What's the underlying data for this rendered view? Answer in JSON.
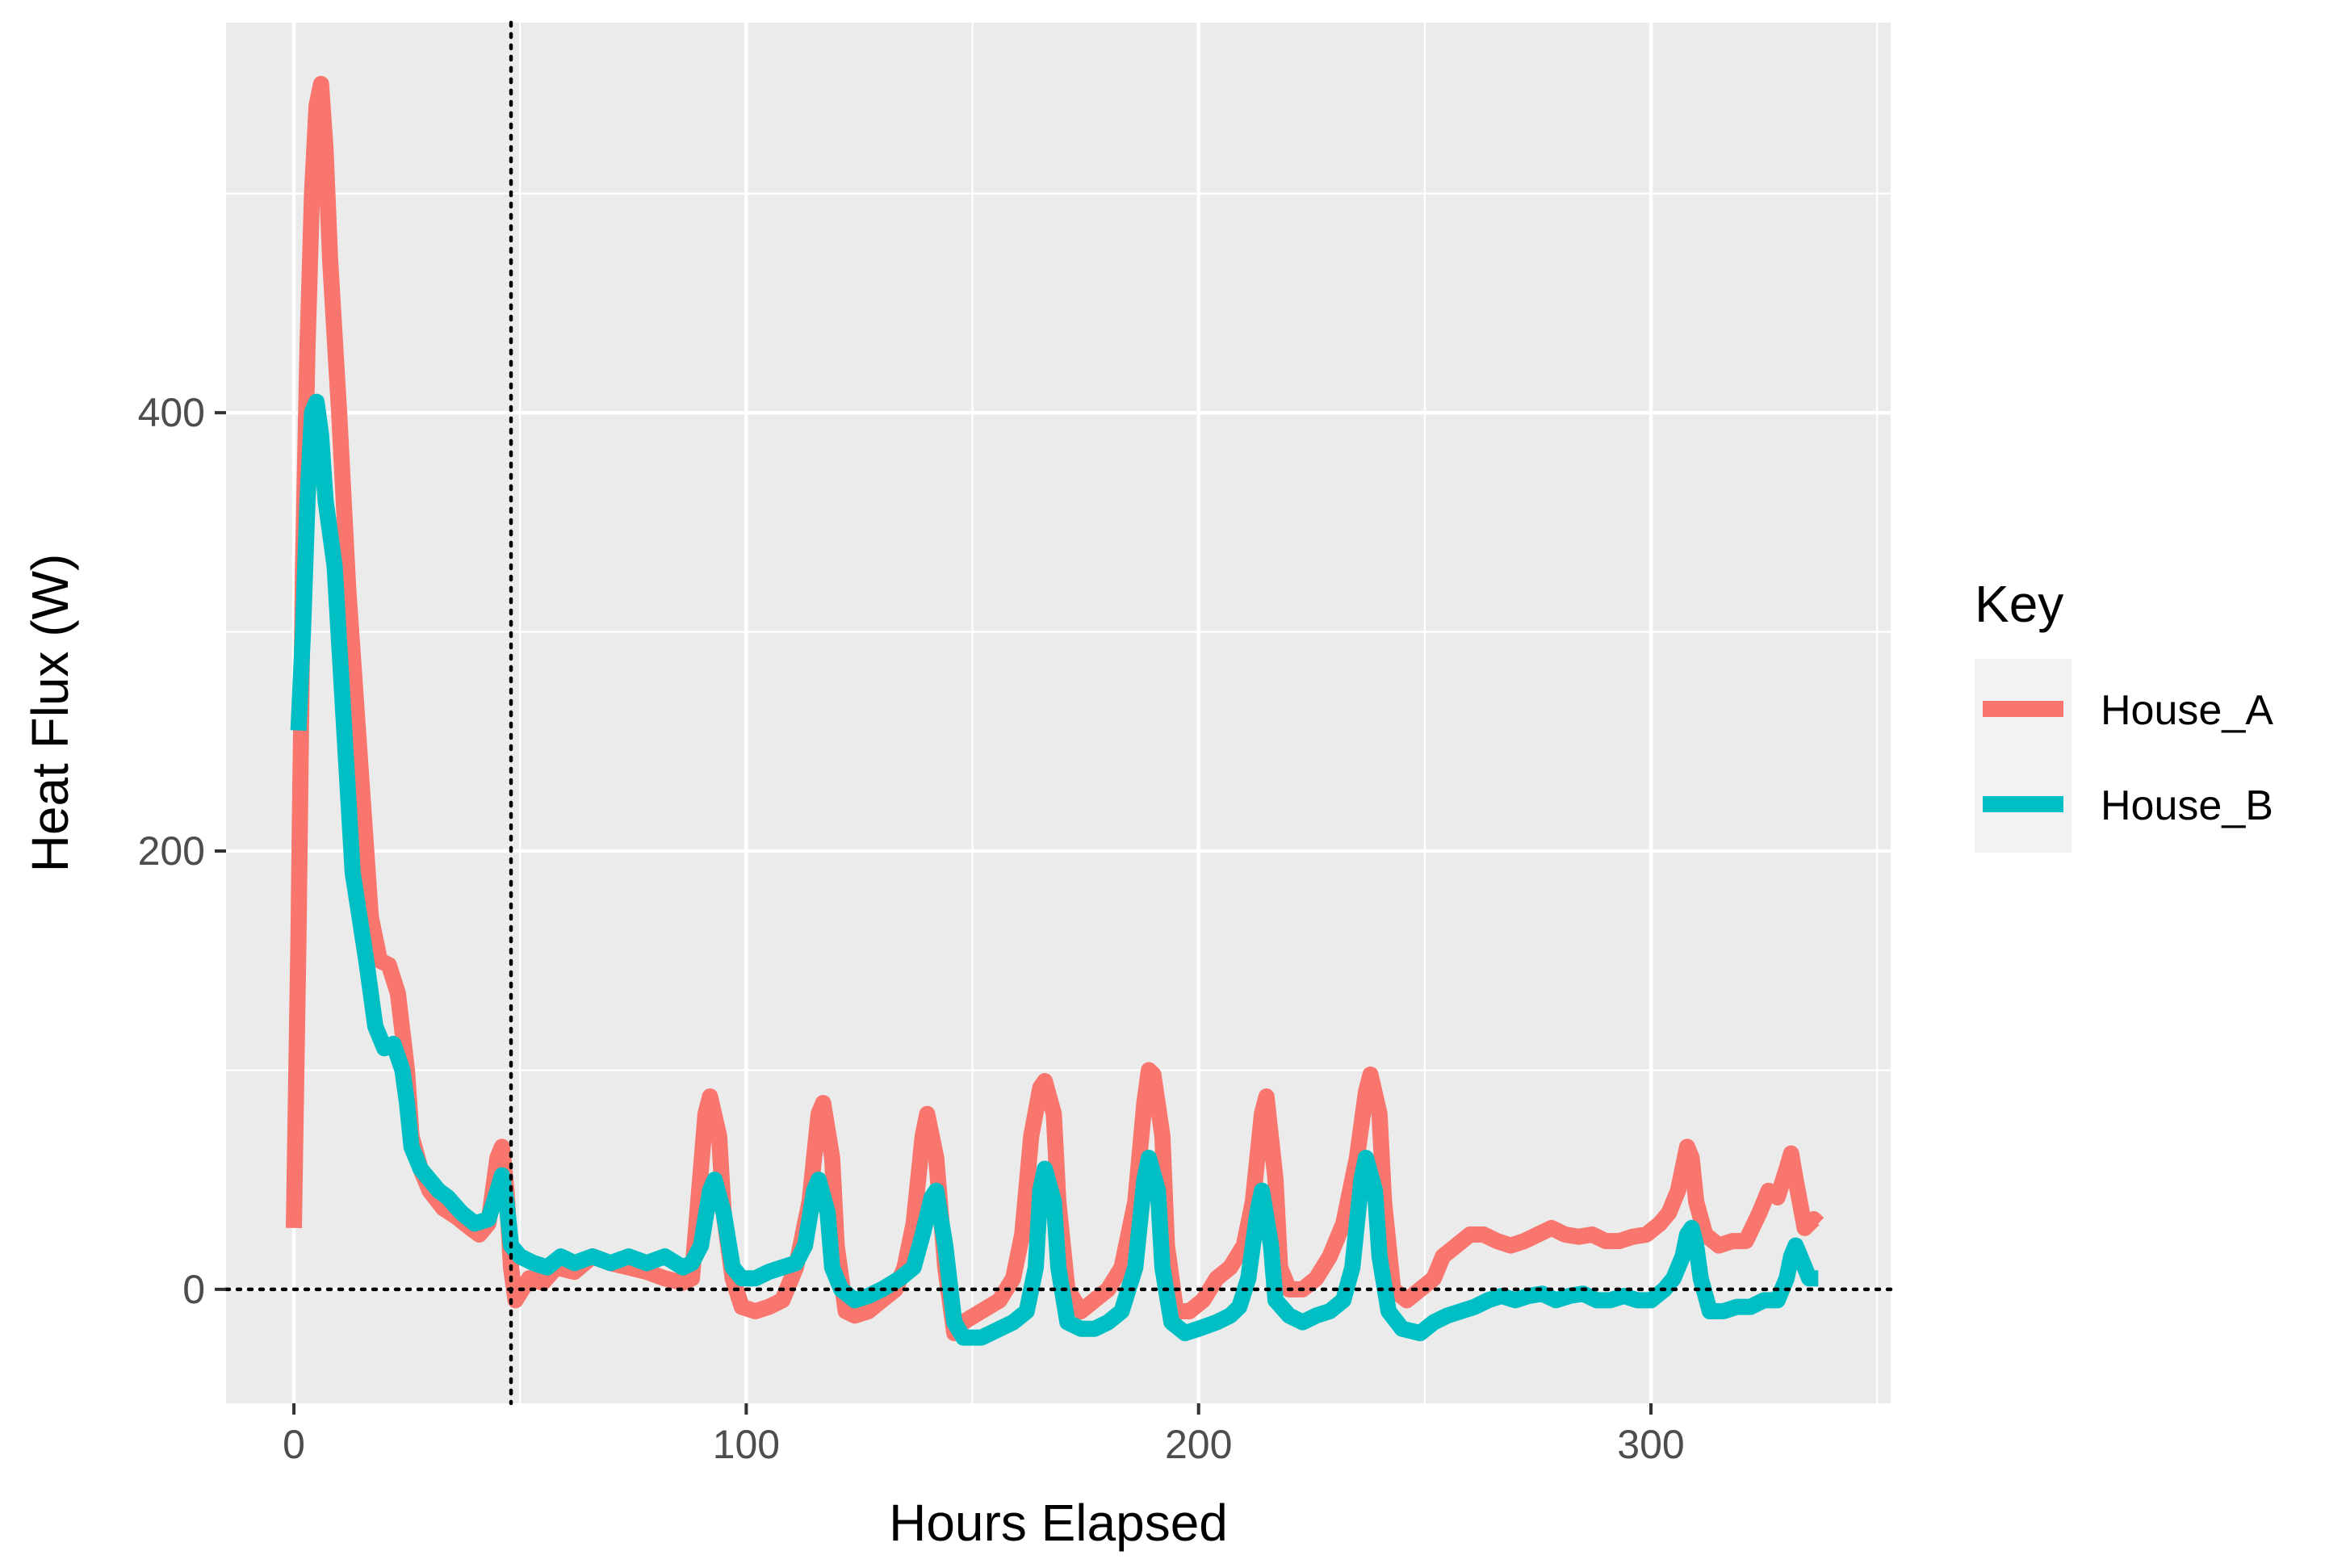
{
  "chart_data": {
    "type": "line",
    "xlabel": "Hours Elapsed",
    "ylabel": "Heat Flux (W)",
    "xlim": [
      -15,
      353
    ],
    "ylim": [
      -52,
      578
    ],
    "x_ticks": [
      0,
      100,
      200,
      300
    ],
    "x_tick_labels": [
      "0",
      "100",
      "200",
      "300"
    ],
    "y_ticks": [
      0,
      200,
      400
    ],
    "y_tick_labels": [
      "0",
      "200",
      "400"
    ],
    "grid": true,
    "reference_lines": [
      {
        "axis": "x",
        "value": 48,
        "style": "dotted"
      },
      {
        "axis": "y",
        "value": 0,
        "style": "dotted"
      }
    ],
    "legend": {
      "title": "Key",
      "position": "right",
      "entries": [
        {
          "label": "House_A",
          "color": "#F8766D"
        },
        {
          "label": "House_B",
          "color": "#00BFC4"
        }
      ]
    },
    "series": [
      {
        "name": "House_A",
        "color": "#F8766D",
        "points": [
          [
            0,
            28
          ],
          [
            1,
            160
          ],
          [
            2,
            330
          ],
          [
            3,
            430
          ],
          [
            4,
            500
          ],
          [
            5,
            540
          ],
          [
            6,
            550
          ],
          [
            7,
            520
          ],
          [
            8,
            470
          ],
          [
            10,
            400
          ],
          [
            12,
            320
          ],
          [
            15,
            230
          ],
          [
            17,
            170
          ],
          [
            19,
            150
          ],
          [
            21,
            148
          ],
          [
            23,
            135
          ],
          [
            25,
            100
          ],
          [
            26,
            70
          ],
          [
            28,
            55
          ],
          [
            30,
            45
          ],
          [
            33,
            37
          ],
          [
            36,
            33
          ],
          [
            39,
            28
          ],
          [
            41,
            25
          ],
          [
            43,
            30
          ],
          [
            45,
            60
          ],
          [
            46,
            65
          ],
          [
            47,
            45
          ],
          [
            48,
            10
          ],
          [
            49,
            -5
          ],
          [
            52,
            5
          ],
          [
            55,
            3
          ],
          [
            58,
            10
          ],
          [
            62,
            8
          ],
          [
            66,
            15
          ],
          [
            70,
            12
          ],
          [
            74,
            10
          ],
          [
            78,
            8
          ],
          [
            82,
            5
          ],
          [
            86,
            3
          ],
          [
            88,
            5
          ],
          [
            89,
            30
          ],
          [
            91,
            80
          ],
          [
            92,
            88
          ],
          [
            94,
            70
          ],
          [
            95,
            35
          ],
          [
            97,
            5
          ],
          [
            99,
            -8
          ],
          [
            102,
            -10
          ],
          [
            105,
            -8
          ],
          [
            108,
            -5
          ],
          [
            111,
            10
          ],
          [
            114,
            40
          ],
          [
            116,
            80
          ],
          [
            117,
            85
          ],
          [
            119,
            60
          ],
          [
            120,
            20
          ],
          [
            122,
            -10
          ],
          [
            124,
            -12
          ],
          [
            127,
            -10
          ],
          [
            130,
            -5
          ],
          [
            133,
            0
          ],
          [
            135,
            10
          ],
          [
            137,
            30
          ],
          [
            139,
            70
          ],
          [
            140,
            80
          ],
          [
            142,
            60
          ],
          [
            144,
            10
          ],
          [
            146,
            -20
          ],
          [
            148,
            -15
          ],
          [
            152,
            -10
          ],
          [
            156,
            -5
          ],
          [
            159,
            5
          ],
          [
            161,
            25
          ],
          [
            163,
            70
          ],
          [
            165,
            92
          ],
          [
            166,
            95
          ],
          [
            168,
            80
          ],
          [
            169,
            40
          ],
          [
            171,
            0
          ],
          [
            174,
            -10
          ],
          [
            177,
            -5
          ],
          [
            180,
            0
          ],
          [
            183,
            10
          ],
          [
            186,
            40
          ],
          [
            188,
            85
          ],
          [
            189,
            100
          ],
          [
            190,
            98
          ],
          [
            192,
            70
          ],
          [
            193,
            20
          ],
          [
            195,
            -10
          ],
          [
            198,
            -10
          ],
          [
            201,
            -5
          ],
          [
            204,
            5
          ],
          [
            207,
            10
          ],
          [
            210,
            20
          ],
          [
            212,
            40
          ],
          [
            214,
            80
          ],
          [
            215,
            88
          ],
          [
            217,
            50
          ],
          [
            218,
            10
          ],
          [
            220,
            0
          ],
          [
            223,
            0
          ],
          [
            226,
            5
          ],
          [
            229,
            15
          ],
          [
            232,
            30
          ],
          [
            235,
            60
          ],
          [
            237,
            90
          ],
          [
            238,
            98
          ],
          [
            240,
            80
          ],
          [
            241,
            40
          ],
          [
            243,
            0
          ],
          [
            246,
            -5
          ],
          [
            249,
            0
          ],
          [
            252,
            5
          ],
          [
            254,
            15
          ],
          [
            257,
            20
          ],
          [
            260,
            25
          ],
          [
            263,
            25
          ],
          [
            266,
            22
          ],
          [
            269,
            20
          ],
          [
            272,
            22
          ],
          [
            275,
            25
          ],
          [
            278,
            28
          ],
          [
            281,
            25
          ],
          [
            284,
            24
          ],
          [
            287,
            25
          ],
          [
            290,
            22
          ],
          [
            293,
            22
          ],
          [
            296,
            24
          ],
          [
            299,
            25
          ],
          [
            302,
            30
          ],
          [
            304,
            35
          ],
          [
            306,
            45
          ],
          [
            308,
            65
          ],
          [
            309,
            60
          ],
          [
            310,
            40
          ],
          [
            312,
            25
          ],
          [
            315,
            20
          ],
          [
            318,
            22
          ],
          [
            321,
            22
          ],
          [
            324,
            35
          ],
          [
            326,
            45
          ],
          [
            328,
            42
          ],
          [
            330,
            55
          ],
          [
            331,
            62
          ],
          [
            332,
            50
          ],
          [
            334,
            28
          ],
          [
            336,
            32
          ],
          [
            337,
            30
          ]
        ]
      },
      {
        "name": "House_B",
        "color": "#00BFC4",
        "points": [
          [
            1,
            255
          ],
          [
            2,
            300
          ],
          [
            3,
            360
          ],
          [
            4,
            400
          ],
          [
            5,
            405
          ],
          [
            6,
            390
          ],
          [
            7,
            360
          ],
          [
            9,
            330
          ],
          [
            11,
            260
          ],
          [
            13,
            190
          ],
          [
            16,
            150
          ],
          [
            18,
            120
          ],
          [
            20,
            110
          ],
          [
            22,
            112
          ],
          [
            24,
            100
          ],
          [
            25,
            85
          ],
          [
            26,
            65
          ],
          [
            28,
            55
          ],
          [
            30,
            50
          ],
          [
            32,
            45
          ],
          [
            34,
            42
          ],
          [
            37,
            35
          ],
          [
            40,
            30
          ],
          [
            43,
            32
          ],
          [
            45,
            45
          ],
          [
            46,
            52
          ],
          [
            47,
            40
          ],
          [
            48,
            20
          ],
          [
            50,
            15
          ],
          [
            53,
            12
          ],
          [
            56,
            10
          ],
          [
            59,
            15
          ],
          [
            62,
            12
          ],
          [
            66,
            15
          ],
          [
            70,
            12
          ],
          [
            74,
            15
          ],
          [
            78,
            12
          ],
          [
            82,
            15
          ],
          [
            86,
            10
          ],
          [
            88,
            12
          ],
          [
            90,
            20
          ],
          [
            92,
            45
          ],
          [
            93,
            50
          ],
          [
            95,
            35
          ],
          [
            97,
            10
          ],
          [
            99,
            5
          ],
          [
            102,
            5
          ],
          [
            105,
            8
          ],
          [
            108,
            10
          ],
          [
            111,
            12
          ],
          [
            113,
            20
          ],
          [
            115,
            45
          ],
          [
            116,
            50
          ],
          [
            118,
            35
          ],
          [
            119,
            10
          ],
          [
            121,
            0
          ],
          [
            124,
            -5
          ],
          [
            127,
            -3
          ],
          [
            130,
            0
          ],
          [
            134,
            5
          ],
          [
            137,
            10
          ],
          [
            139,
            25
          ],
          [
            141,
            42
          ],
          [
            142,
            45
          ],
          [
            144,
            20
          ],
          [
            146,
            -15
          ],
          [
            148,
            -22
          ],
          [
            152,
            -22
          ],
          [
            156,
            -18
          ],
          [
            159,
            -15
          ],
          [
            162,
            -10
          ],
          [
            164,
            10
          ],
          [
            165,
            45
          ],
          [
            166,
            55
          ],
          [
            168,
            40
          ],
          [
            169,
            10
          ],
          [
            171,
            -15
          ],
          [
            174,
            -18
          ],
          [
            177,
            -18
          ],
          [
            180,
            -15
          ],
          [
            183,
            -10
          ],
          [
            186,
            10
          ],
          [
            188,
            50
          ],
          [
            189,
            60
          ],
          [
            191,
            45
          ],
          [
            192,
            10
          ],
          [
            194,
            -15
          ],
          [
            197,
            -20
          ],
          [
            200,
            -18
          ],
          [
            204,
            -15
          ],
          [
            207,
            -12
          ],
          [
            209,
            -8
          ],
          [
            211,
            5
          ],
          [
            213,
            35
          ],
          [
            214,
            45
          ],
          [
            216,
            20
          ],
          [
            217,
            -5
          ],
          [
            220,
            -12
          ],
          [
            223,
            -15
          ],
          [
            226,
            -12
          ],
          [
            229,
            -10
          ],
          [
            232,
            -5
          ],
          [
            234,
            10
          ],
          [
            236,
            50
          ],
          [
            237,
            60
          ],
          [
            239,
            45
          ],
          [
            240,
            15
          ],
          [
            242,
            -10
          ],
          [
            245,
            -18
          ],
          [
            249,
            -20
          ],
          [
            252,
            -15
          ],
          [
            255,
            -12
          ],
          [
            258,
            -10
          ],
          [
            261,
            -8
          ],
          [
            264,
            -5
          ],
          [
            267,
            -3
          ],
          [
            270,
            -5
          ],
          [
            273,
            -3
          ],
          [
            276,
            -2
          ],
          [
            279,
            -5
          ],
          [
            282,
            -3
          ],
          [
            285,
            -2
          ],
          [
            288,
            -5
          ],
          [
            291,
            -5
          ],
          [
            294,
            -3
          ],
          [
            297,
            -5
          ],
          [
            300,
            -5
          ],
          [
            303,
            0
          ],
          [
            305,
            5
          ],
          [
            307,
            15
          ],
          [
            308,
            25
          ],
          [
            309,
            28
          ],
          [
            310,
            20
          ],
          [
            311,
            5
          ],
          [
            313,
            -10
          ],
          [
            316,
            -10
          ],
          [
            319,
            -8
          ],
          [
            322,
            -8
          ],
          [
            325,
            -5
          ],
          [
            328,
            -5
          ],
          [
            330,
            5
          ],
          [
            331,
            15
          ],
          [
            332,
            20
          ],
          [
            333,
            15
          ],
          [
            335,
            5
          ],
          [
            337,
            5
          ]
        ]
      }
    ]
  }
}
